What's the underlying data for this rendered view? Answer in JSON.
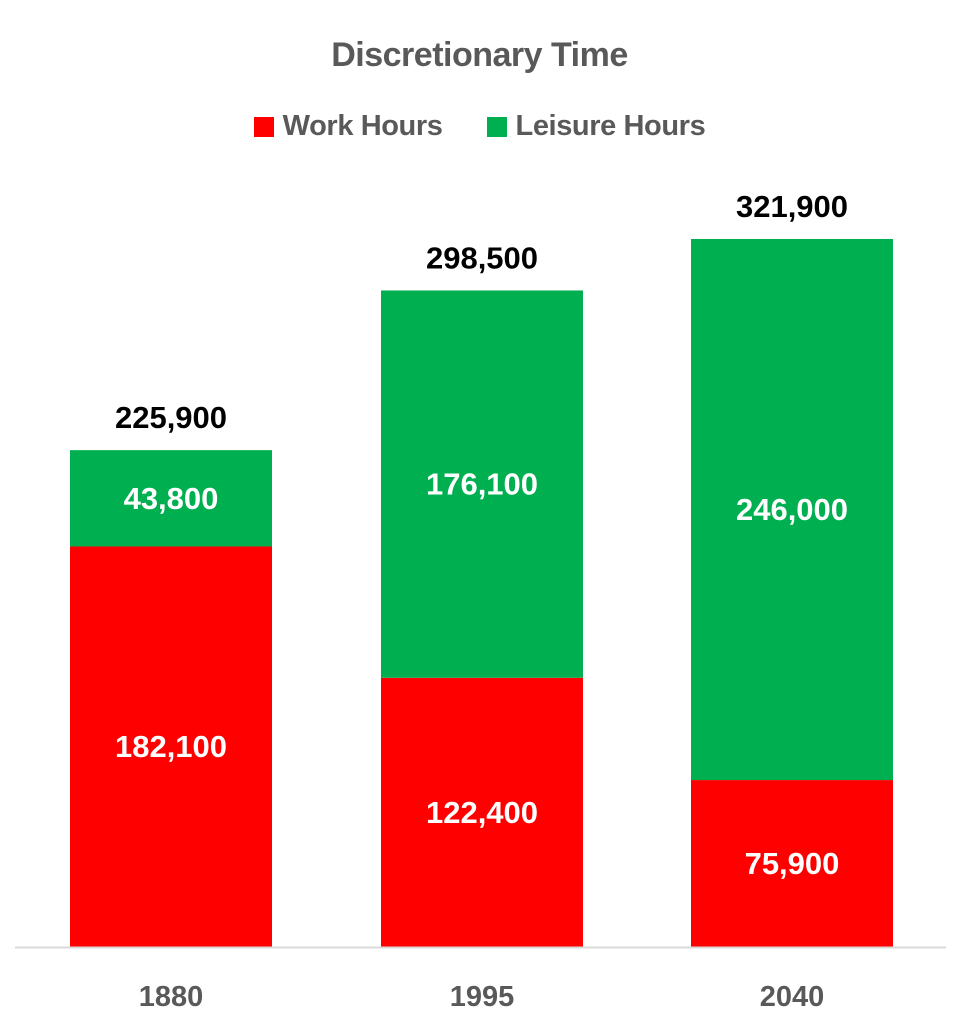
{
  "chart_data": {
    "type": "bar",
    "stacked": true,
    "title": "Discretionary Time",
    "categories": [
      "1880",
      "1995",
      "2040"
    ],
    "series": [
      {
        "name": "Work Hours",
        "values": [
          182100,
          122400,
          75900
        ],
        "color": "#ff0000",
        "labels": [
          "182,100",
          "122,400",
          "75,900"
        ]
      },
      {
        "name": "Leisure Hours",
        "values": [
          43800,
          176100,
          246000
        ],
        "color": "#00b050",
        "labels": [
          "43,800",
          "176,100",
          "246,000"
        ]
      }
    ],
    "totals": [
      225900,
      298500,
      321900
    ],
    "total_labels": [
      "225,900",
      "298,500",
      "321,900"
    ],
    "ylim": [
      0,
      321900
    ],
    "grid": false,
    "legend_position": "top"
  },
  "colors": {
    "title": "#595959",
    "axis_line": "#d9d9d9",
    "total_label": "#000000",
    "segment_label": "#ffffff"
  }
}
